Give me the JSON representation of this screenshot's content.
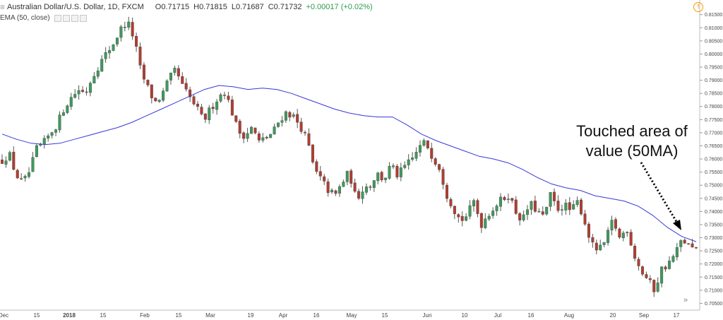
{
  "legend": {
    "title": "Australian Dollar/U.S. Dollar, 1D, FXCM",
    "open": "O0.71715",
    "high": "H0.71815",
    "low": "L0.71687",
    "close": "C0.71732",
    "change": "+0.00017 (+0.02%)",
    "ema_label": "EMA (50, close)"
  },
  "icons": {
    "alert": "alert-icon",
    "scroll_right": "double-chevron-right-icon"
  },
  "annotation": {
    "line1": "Touched area of",
    "line2": "value (50MA)"
  },
  "colors": {
    "up": "#3d9b5c",
    "down": "#b33c30",
    "ema": "#3838d9",
    "arrow": "#000000"
  },
  "chart_data": {
    "type": "candlestick",
    "y_ticks": [
      "0.81500",
      "0.81000",
      "0.80500",
      "0.80000",
      "0.79500",
      "0.79000",
      "0.78500",
      "0.78000",
      "0.77500",
      "0.77000",
      "0.76500",
      "0.76000",
      "0.75500",
      "0.75000",
      "0.74500",
      "0.74000",
      "0.73500",
      "0.73000",
      "0.72500",
      "0.72000",
      "0.71500",
      "0.71000",
      "0.70500"
    ],
    "x_ticks": [
      "Dec",
      "15",
      "2018",
      "15",
      "Feb",
      "15",
      "Mar",
      "19",
      "Apr",
      "16",
      "May",
      "15",
      "Jun",
      "10",
      "Jul",
      "16",
      "Aug",
      "20",
      "Sep",
      "17"
    ],
    "ylim": [
      0.7035,
      0.8168
    ],
    "close_path": [
      0.7595,
      0.762,
      0.754,
      0.7505,
      0.7555,
      0.764,
      0.766,
      0.77,
      0.7735,
      0.78,
      0.7835,
      0.7865,
      0.785,
      0.7915,
      0.796,
      0.8,
      0.804,
      0.809,
      0.8125,
      0.806,
      0.793,
      0.787,
      0.7815,
      0.784,
      0.79,
      0.794,
      0.7875,
      0.7835,
      0.7795,
      0.7745,
      0.779,
      0.783,
      0.786,
      0.779,
      0.7705,
      0.769,
      0.772,
      0.7665,
      0.768,
      0.77,
      0.775,
      0.778,
      0.776,
      0.7725,
      0.7665,
      0.7555,
      0.752,
      0.748,
      0.746,
      0.751,
      0.755,
      0.7445,
      0.749,
      0.75,
      0.7545,
      0.752,
      0.7575,
      0.7535,
      0.757,
      0.7595,
      0.764,
      0.7665,
      0.761,
      0.757,
      0.747,
      0.7415,
      0.7365,
      0.7385,
      0.744,
      0.735,
      0.739,
      0.742,
      0.7445,
      0.7465,
      0.74,
      0.7365,
      0.743,
      0.7405,
      0.7375,
      0.746,
      0.741,
      0.7425,
      0.74,
      0.744,
      0.7355,
      0.727,
      0.725,
      0.729,
      0.737,
      0.7295,
      0.734,
      0.724,
      0.7175,
      0.714,
      0.71,
      0.718,
      0.72,
      0.724,
      0.7295,
      0.7265,
      0.725
    ],
    "ema_50": [
      0.7695,
      0.7675,
      0.766,
      0.7655,
      0.766,
      0.7675,
      0.769,
      0.7705,
      0.772,
      0.774,
      0.7765,
      0.779,
      0.7815,
      0.784,
      0.7865,
      0.788,
      0.7875,
      0.7865,
      0.787,
      0.7865,
      0.785,
      0.783,
      0.781,
      0.779,
      0.7775,
      0.7765,
      0.776,
      0.776,
      0.773,
      0.7695,
      0.767,
      0.765,
      0.763,
      0.761,
      0.76,
      0.7585,
      0.756,
      0.753,
      0.7505,
      0.749,
      0.748,
      0.746,
      0.745,
      0.744,
      0.742,
      0.7385,
      0.734,
      0.7305,
      0.7285
    ]
  }
}
